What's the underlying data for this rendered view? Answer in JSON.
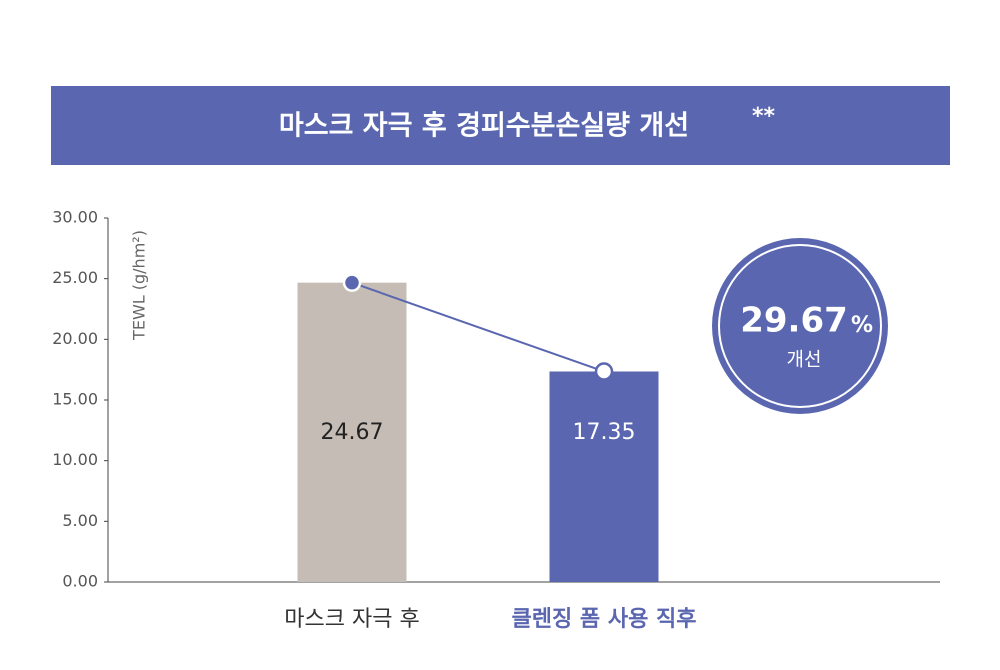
{
  "chart_data": {
    "type": "bar",
    "title": "마스크 자극 후 경피수분손실량 개선",
    "title_mark": "**",
    "y_label": "TEWL (g/hm²)",
    "categories": [
      "마스크 자극 후",
      "클렌징 폼 사용 직후"
    ],
    "values": [
      24.67,
      17.35
    ],
    "colors": [
      "#c4bcb5",
      "#5a67b0"
    ],
    "label_colors": [
      "#222222",
      "#ffffff"
    ],
    "category_colors": [
      "#333333",
      "#5a67b0"
    ],
    "ylim": [
      0,
      30
    ],
    "yticks": [
      {
        "value": 0,
        "label": "0.00"
      },
      {
        "value": 5,
        "label": "5.00"
      },
      {
        "value": 10,
        "label": "10.00"
      },
      {
        "value": 15,
        "label": "15.00"
      },
      {
        "value": 20,
        "label": "20.00"
      },
      {
        "value": 25,
        "label": "25.00"
      },
      {
        "value": 30,
        "label": "30.00"
      }
    ],
    "badge": {
      "value": 29.67,
      "unit": "%",
      "caption": "개선"
    }
  }
}
